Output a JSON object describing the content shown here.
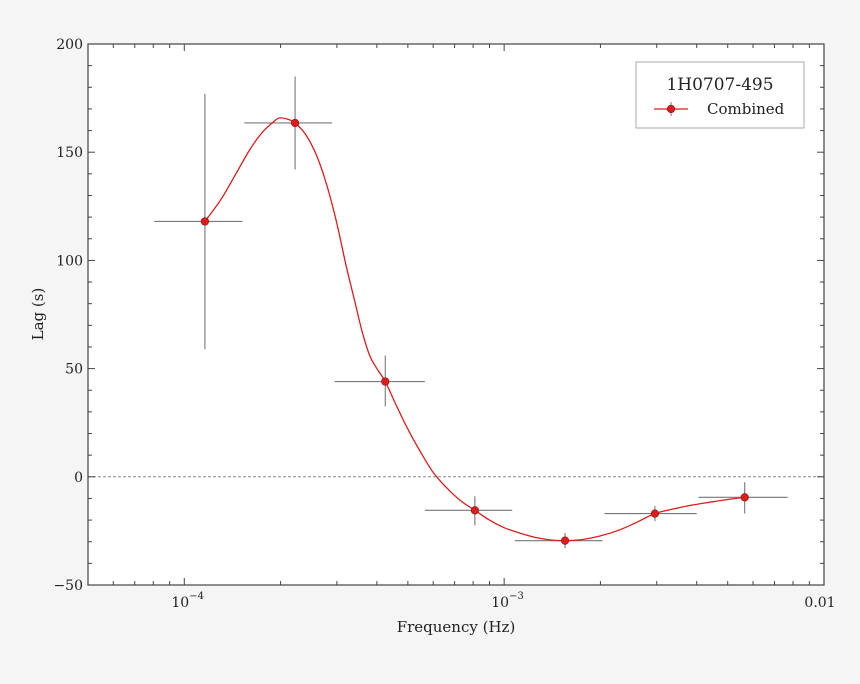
{
  "chart_data": {
    "type": "scatter",
    "title": "",
    "xlabel": "Frequency (Hz)",
    "ylabel": "Lag (s)",
    "xscale": "log",
    "xlim": [
      5e-05,
      0.01
    ],
    "ylim": [
      -50,
      200
    ],
    "grid": false,
    "x_ticks": [
      {
        "value": 0.0001,
        "label": "10",
        "sup": "−4"
      },
      {
        "value": 0.001,
        "label": "10",
        "sup": "−3"
      },
      {
        "value": 0.01,
        "label": "0.01",
        "sup": ""
      }
    ],
    "y_ticks": [
      -50,
      0,
      50,
      100,
      150,
      200
    ],
    "y_minor_step": 10,
    "zero_line": {
      "y": 0,
      "style": "dashed",
      "color": "#888888"
    },
    "legend": {
      "position": "upper right",
      "title": "1H0707-495",
      "entries": [
        {
          "label": "Combined",
          "color": "#dd1c1c"
        }
      ]
    },
    "series": [
      {
        "name": "Combined",
        "color": "#dd1c1c",
        "errorbar_color": "#777777",
        "points": [
          {
            "x": 0.000116,
            "y": 118,
            "xerr_low": 8.05e-05,
            "xerr_high": 0.000152,
            "yerr_low": 59,
            "yerr_high": 177
          },
          {
            "x": 0.000222,
            "y": 163.5,
            "xerr_low": 0.000154,
            "xerr_high": 0.00029,
            "yerr_low": 142,
            "yerr_high": 185
          },
          {
            "x": 0.000425,
            "y": 44,
            "xerr_low": 0.000295,
            "xerr_high": 0.000565,
            "yerr_low": 32.5,
            "yerr_high": 56
          },
          {
            "x": 0.00081,
            "y": -15.5,
            "xerr_low": 0.000565,
            "xerr_high": 0.00106,
            "yerr_low": -22.5,
            "yerr_high": -9
          },
          {
            "x": 0.00155,
            "y": -29.5,
            "xerr_low": 0.00108,
            "xerr_high": 0.00203,
            "yerr_low": -33,
            "yerr_high": -26
          },
          {
            "x": 0.00296,
            "y": -17,
            "xerr_low": 0.00206,
            "xerr_high": 0.004,
            "yerr_low": -20.5,
            "yerr_high": -13.5
          },
          {
            "x": 0.00565,
            "y": -9.5,
            "xerr_low": 0.00405,
            "xerr_high": 0.0077,
            "yerr_low": -17,
            "yerr_high": -2.5
          }
        ],
        "model_curve": {
          "x": [
            0.000116,
            0.00013,
            0.000145,
            0.00016,
            0.000175,
            0.00019,
            0.000198,
            0.00021,
            0.000222,
            0.00024,
            0.00026,
            0.00028,
            0.0003,
            0.00032,
            0.00034,
            0.00036,
            0.00038,
            0.0004,
            0.000425,
            0.00046,
            0.0005,
            0.00055,
            0.0006,
            0.00066,
            0.00073,
            0.00081,
            0.0009,
            0.001,
            0.00112,
            0.00125,
            0.0014,
            0.00155,
            0.00175,
            0.002,
            0.0023,
            0.0026,
            0.00296,
            0.0034,
            0.0039,
            0.0045,
            0.0051,
            0.00565
          ],
          "y": [
            118,
            128,
            140,
            151,
            159,
            164,
            165.8,
            165.3,
            163.5,
            158,
            148,
            134,
            117,
            98,
            82,
            67,
            56,
            50,
            44,
            33,
            22,
            11,
            2,
            -5,
            -11,
            -15.5,
            -20,
            -23.5,
            -26,
            -28,
            -29.2,
            -29.5,
            -29,
            -27.3,
            -24.5,
            -21,
            -17,
            -14.8,
            -13,
            -11.5,
            -10.3,
            -9.5
          ]
        }
      }
    ]
  }
}
